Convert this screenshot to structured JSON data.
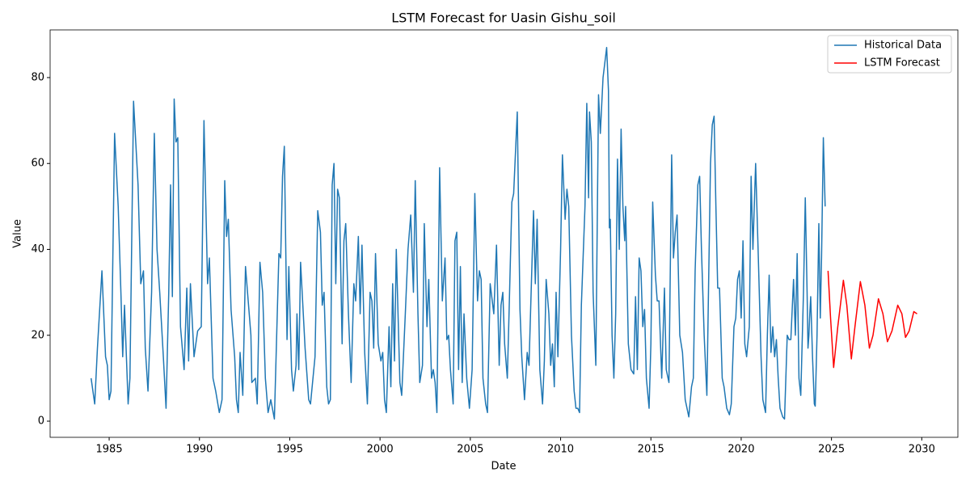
{
  "chart_data": {
    "type": "line",
    "title": "LSTM Forecast for Uasin Gishu_soil",
    "x_label": "Date",
    "y_label": "Value",
    "xlim": [
      1981.73,
      2032.0
    ],
    "xticks": [
      1985,
      1990,
      1995,
      2000,
      2005,
      2010,
      2015,
      2020,
      2025,
      2030
    ],
    "ylim": [
      -3.76,
      91.1
    ],
    "yticks": [
      0,
      20,
      40,
      60,
      80
    ],
    "grid": false,
    "legend": "upper right",
    "series": [
      {
        "name": "Historical Data",
        "color": "#1f77b4",
        "x": [
          1984.0,
          1984.2,
          1984.35,
          1984.6,
          1984.8,
          1984.9,
          1985.0,
          1985.1,
          1985.3,
          1985.5,
          1985.65,
          1985.75,
          1985.85,
          1986.05,
          1986.15,
          1986.35,
          1986.6,
          1986.75,
          1986.9,
          1987.0,
          1987.15,
          1987.35,
          1987.5,
          1987.65,
          1987.8,
          1988.0,
          1988.15,
          1988.3,
          1988.4,
          1988.5,
          1988.6,
          1988.7,
          1988.8,
          1988.95,
          1989.15,
          1989.3,
          1989.4,
          1989.5,
          1989.7,
          1989.9,
          1990.1,
          1990.25,
          1990.45,
          1990.55,
          1990.75,
          1990.9,
          1991.1,
          1991.25,
          1991.4,
          1991.5,
          1991.6,
          1991.75,
          1991.95,
          1992.05,
          1992.15,
          1992.25,
          1992.4,
          1992.55,
          1992.7,
          1992.85,
          1992.9,
          1993.1,
          1993.2,
          1993.35,
          1993.5,
          1993.65,
          1993.8,
          1993.95,
          1994.15,
          1994.4,
          1994.5,
          1994.6,
          1994.7,
          1994.85,
          1994.95,
          1995.1,
          1995.2,
          1995.35,
          1995.4,
          1995.5,
          1995.6,
          1995.75,
          1995.85,
          1996.05,
          1996.15,
          1996.4,
          1996.55,
          1996.7,
          1996.8,
          1996.9,
          1997.05,
          1997.15,
          1997.25,
          1997.35,
          1997.45,
          1997.55,
          1997.65,
          1997.75,
          1997.9,
          1998.0,
          1998.1,
          1998.25,
          1998.4,
          1998.55,
          1998.65,
          1998.8,
          1998.9,
          1999.0,
          1999.15,
          1999.3,
          1999.45,
          1999.55,
          1999.65,
          1999.75,
          1999.9,
          2000.05,
          2000.15,
          2000.25,
          2000.35,
          2000.5,
          2000.6,
          2000.7,
          2000.8,
          2000.9,
          2001.1,
          2001.2,
          2001.4,
          2001.55,
          2001.7,
          2001.85,
          2001.95,
          2002.1,
          2002.2,
          2002.35,
          2002.45,
          2002.6,
          2002.7,
          2002.85,
          2002.95,
          2003.05,
          2003.15,
          2003.3,
          2003.45,
          2003.6,
          2003.7,
          2003.8,
          2003.9,
          2004.05,
          2004.15,
          2004.25,
          2004.35,
          2004.45,
          2004.55,
          2004.65,
          2004.8,
          2004.95,
          2005.1,
          2005.25,
          2005.4,
          2005.5,
          2005.6,
          2005.7,
          2005.85,
          2005.95,
          2006.1,
          2006.3,
          2006.45,
          2006.6,
          2006.7,
          2006.8,
          2006.9,
          2007.05,
          2007.15,
          2007.3,
          2007.4,
          2007.6,
          2007.75,
          2007.85,
          2008.0,
          2008.15,
          2008.25,
          2008.5,
          2008.6,
          2008.7,
          2008.85,
          2009.0,
          2009.1,
          2009.2,
          2009.35,
          2009.45,
          2009.55,
          2009.65,
          2009.75,
          2009.85,
          2010.0,
          2010.1,
          2010.25,
          2010.35,
          2010.45,
          2010.6,
          2010.75,
          2010.85,
          2010.95,
          2011.05,
          2011.15,
          2011.35,
          2011.45,
          2011.55,
          2011.6,
          2011.7,
          2011.8,
          2011.95,
          2012.1,
          2012.2,
          2012.35,
          2012.55,
          2012.65,
          2012.7,
          2012.75,
          2012.85,
          2012.95,
          2013.05,
          2013.15,
          2013.25,
          2013.35,
          2013.45,
          2013.55,
          2013.6,
          2013.75,
          2013.9,
          2014.05,
          2014.15,
          2014.25,
          2014.35,
          2014.45,
          2014.55,
          2014.65,
          2014.75,
          2014.9,
          2015.0,
          2015.1,
          2015.25,
          2015.35,
          2015.45,
          2015.6,
          2015.75,
          2015.85,
          2016.0,
          2016.15,
          2016.25,
          2016.35,
          2016.45,
          2016.6,
          2016.75,
          2016.9,
          2017.0,
          2017.1,
          2017.25,
          2017.35,
          2017.45,
          2017.6,
          2017.7,
          2017.8,
          2017.95,
          2018.1,
          2018.3,
          2018.4,
          2018.5,
          2018.6,
          2018.7,
          2018.8,
          2018.95,
          2019.05,
          2019.2,
          2019.35,
          2019.45,
          2019.6,
          2019.7,
          2019.8,
          2019.9,
          2020.0,
          2020.1,
          2020.2,
          2020.3,
          2020.45,
          2020.55,
          2020.65,
          2020.8,
          2020.95,
          2021.1,
          2021.2,
          2021.35,
          2021.45,
          2021.55,
          2021.65,
          2021.75,
          2021.85,
          2021.95,
          2022.05,
          2022.15,
          2022.3,
          2022.4,
          2022.55,
          2022.65,
          2022.75,
          2022.9,
          2023.0,
          2023.1,
          2023.2,
          2023.3,
          2023.45,
          2023.55,
          2023.65,
          2023.7,
          2023.75,
          2023.8,
          2023.85,
          2023.95,
          2024.05,
          2024.1,
          2024.2,
          2024.3,
          2024.38,
          2024.45,
          2024.55,
          2024.65
        ],
        "values": [
          10,
          4,
          17,
          35,
          15,
          13,
          5,
          7,
          67,
          50,
          30,
          15,
          27,
          4,
          10,
          74.5,
          55,
          32,
          35,
          17,
          7,
          30,
          67,
          40,
          30,
          15,
          3,
          30,
          55,
          29,
          75,
          65,
          66,
          22,
          12,
          31,
          14,
          32,
          15,
          21,
          22,
          70,
          32,
          38,
          10,
          7,
          2,
          5,
          56,
          43,
          47,
          26,
          15,
          5,
          2,
          16,
          6,
          36,
          28,
          20,
          9,
          10,
          4,
          37,
          30,
          10,
          2,
          5,
          0.5,
          39,
          38,
          57,
          64,
          19,
          36,
          12,
          7,
          13,
          25,
          12,
          37,
          25,
          17,
          5,
          4,
          15,
          49,
          44,
          27,
          30,
          8,
          4,
          5,
          55,
          60,
          32,
          54,
          52,
          18,
          42,
          46,
          25,
          9,
          32,
          28,
          43,
          25,
          41,
          16,
          4,
          30,
          28,
          17,
          39,
          18,
          14,
          16,
          5,
          2,
          22,
          8,
          32,
          14,
          40,
          9,
          6,
          25,
          40,
          48,
          30,
          56,
          25,
          9,
          13,
          46,
          22,
          33,
          10,
          12,
          9,
          2,
          59,
          28,
          38,
          19,
          20,
          12,
          4,
          42,
          44,
          12,
          36,
          9,
          25,
          10,
          3,
          12,
          53,
          28,
          35,
          33,
          10,
          4,
          2,
          32,
          25,
          41,
          13,
          27,
          30,
          18,
          10,
          26,
          51,
          53,
          72,
          26,
          15,
          5,
          16,
          13,
          49,
          32,
          47,
          12,
          4,
          14,
          33,
          25,
          13,
          18,
          8,
          30,
          15,
          40,
          62,
          47,
          54,
          50,
          20,
          7,
          3,
          3,
          2,
          27,
          50,
          74,
          52,
          72,
          65,
          30,
          13,
          76,
          67,
          80,
          87,
          77,
          45,
          47,
          20,
          10,
          25,
          61,
          40,
          68,
          50,
          42,
          50,
          18,
          12,
          11,
          29,
          12,
          38,
          35,
          22,
          26,
          10,
          3,
          18,
          51,
          34,
          28,
          28,
          10,
          31,
          12,
          9,
          62,
          38,
          44,
          48,
          20,
          16,
          5,
          3,
          1,
          8,
          10,
          35,
          55,
          57,
          40,
          20,
          6,
          60,
          69,
          71,
          50,
          31,
          31,
          10,
          8,
          3,
          1.5,
          4,
          22,
          24,
          33,
          35,
          24,
          42,
          18,
          15,
          22,
          57,
          40,
          60,
          38,
          15,
          5,
          2,
          20,
          34,
          16,
          22,
          15,
          19,
          10,
          3,
          1,
          0.5,
          20,
          19,
          19,
          33,
          20,
          39,
          10,
          6,
          30,
          52,
          30,
          17,
          20,
          25,
          29,
          15,
          4,
          3.5,
          20,
          46,
          24,
          38,
          66,
          50
        ]
      },
      {
        "name": "LSTM Forecast",
        "color": "#ff0000",
        "x": [
          2024.81,
          2024.95,
          2025.12,
          2025.35,
          2025.66,
          2025.85,
          2026.1,
          2026.3,
          2026.6,
          2026.85,
          2027.1,
          2027.3,
          2027.6,
          2027.85,
          2028.1,
          2028.35,
          2028.67,
          2028.9,
          2029.1,
          2029.3,
          2029.56,
          2029.74
        ],
        "values": [
          35,
          24,
          12.5,
          22,
          32.8,
          27,
          14.5,
          22,
          32.5,
          27,
          17,
          20,
          28.5,
          25,
          18.5,
          21,
          27,
          25,
          19.5,
          21,
          25.5,
          25
        ]
      }
    ]
  }
}
